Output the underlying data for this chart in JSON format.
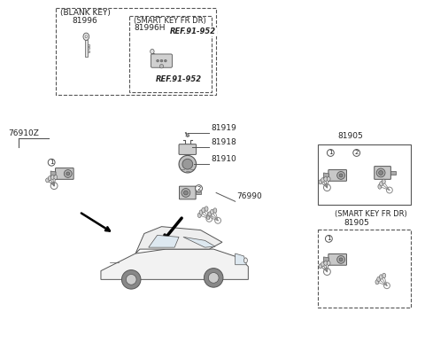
{
  "bg_color": "#ffffff",
  "lc": "#555555",
  "tc": "#222222",
  "fs": 6.5,
  "parts": {
    "blank_key_label": "(BLANK KEY)",
    "smart_key_label": "(SMART KEY FR DR)",
    "p81996": "81996",
    "p81996H": "81996H",
    "ref1": "REF.91-952",
    "ref2": "REF.91-952",
    "p81919": "81919",
    "p81918": "81918",
    "p81910": "81910",
    "p76910Z": "76910Z",
    "p76990": "76990",
    "p81905": "81905",
    "smart_fr_dr": "(SMART KEY FR DR)",
    "p81905b": "81905"
  }
}
